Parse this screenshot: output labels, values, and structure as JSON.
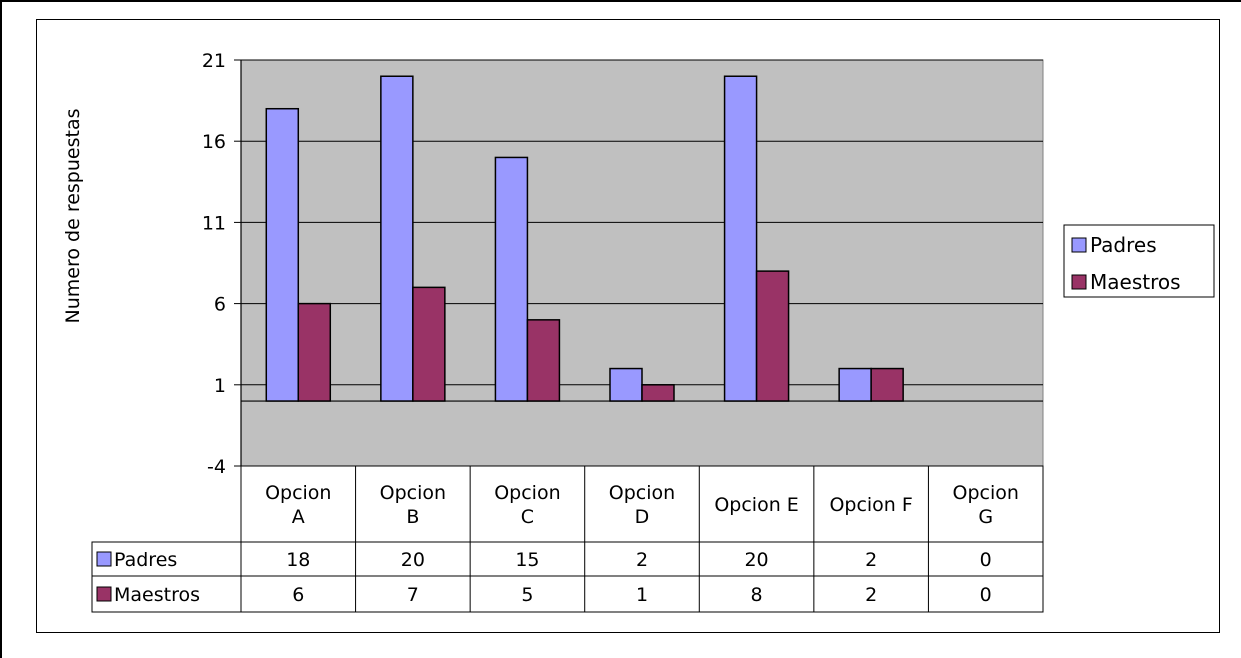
{
  "chart_data": {
    "type": "bar",
    "categories": [
      [
        "Opcion",
        "A"
      ],
      [
        "Opcion",
        "B"
      ],
      [
        "Opcion",
        "C"
      ],
      [
        "Opcion",
        "D"
      ],
      [
        "Opcion E"
      ],
      [
        "Opcion F"
      ],
      [
        "Opcion",
        "G"
      ]
    ],
    "series": [
      {
        "name": "Padres",
        "values": [
          18,
          20,
          15,
          2,
          20,
          2,
          0
        ],
        "color": "#9999FF"
      },
      {
        "name": "Maestros",
        "values": [
          6,
          7,
          5,
          1,
          8,
          2,
          0
        ],
        "color": "#993366"
      }
    ],
    "baseline": 0,
    "ylabel": "Numero de respuestas",
    "yticks": [
      21,
      16,
      11,
      6,
      1,
      -4
    ],
    "ylim": [
      -4,
      21
    ],
    "grid": true,
    "plot_background": "#C0C0C0",
    "legend_position": "right",
    "data_table": true
  }
}
